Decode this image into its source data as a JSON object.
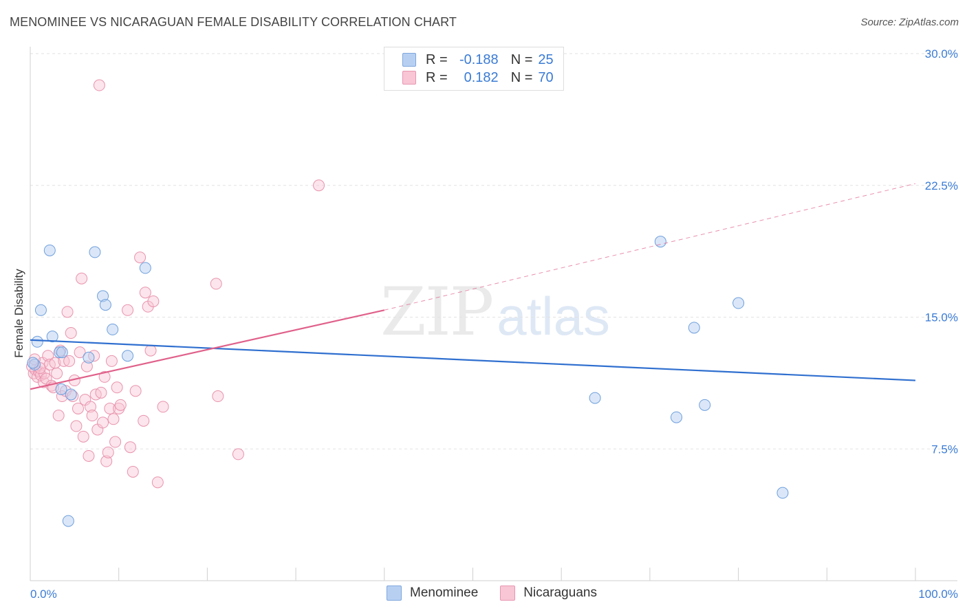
{
  "header": {
    "title": "MENOMINEE VS NICARAGUAN FEMALE DISABILITY CORRELATION CHART",
    "source": "Source: ZipAtlas.com"
  },
  "legend": {
    "rows": [
      {
        "r_label": "R =",
        "r_value": "-0.188",
        "n_label": "N =",
        "n_value": "25"
      },
      {
        "r_label": "R =",
        "r_value": "0.182",
        "n_label": "N =",
        "n_value": "70"
      }
    ]
  },
  "bottom_legend": [
    "Menominee",
    "Nicaraguans"
  ],
  "watermark": {
    "zip": "ZIP",
    "atlas": "atlas"
  },
  "colors": {
    "blue_fill": "#b7d0f2",
    "blue_stroke": "#6e9fdc",
    "blue_line": "#2f6fcf",
    "pink_fill": "#f8c6d5",
    "pink_stroke": "#e893ad",
    "pink_line": "#e0608a",
    "tick_label": "#3a7bd5",
    "grid": "#e2e2e2"
  },
  "chart_data": {
    "type": "scatter",
    "title": "MENOMINEE VS NICARAGUAN FEMALE DISABILITY CORRELATION CHART",
    "xlabel": "",
    "ylabel": "Female Disability",
    "xlim": [
      0,
      100
    ],
    "ylim": [
      0,
      30
    ],
    "x_tick_labels": [
      "0.0%",
      "100.0%"
    ],
    "y_ticks": [
      7.5,
      15.0,
      22.5,
      30.0
    ],
    "y_tick_labels": [
      "7.5%",
      "15.0%",
      "22.5%",
      "30.0%"
    ],
    "series": [
      {
        "name": "Menominee",
        "r": -0.188,
        "n": 25,
        "trend": {
          "x": [
            0,
            100
          ],
          "y": [
            13.7,
            11.4
          ],
          "dashed_beyond": null
        },
        "points": [
          [
            0.5,
            12.3
          ],
          [
            0.8,
            13.6
          ],
          [
            1.2,
            15.4
          ],
          [
            2.2,
            18.8
          ],
          [
            2.5,
            13.9
          ],
          [
            3.3,
            13.0
          ],
          [
            3.5,
            10.9
          ],
          [
            3.6,
            13.0
          ],
          [
            4.3,
            3.4
          ],
          [
            4.6,
            10.6
          ],
          [
            6.6,
            12.7
          ],
          [
            7.3,
            18.7
          ],
          [
            8.2,
            16.2
          ],
          [
            8.5,
            15.7
          ],
          [
            9.3,
            14.3
          ],
          [
            11.0,
            12.8
          ],
          [
            13.0,
            17.8
          ],
          [
            63.8,
            10.4
          ],
          [
            71.2,
            19.3
          ],
          [
            73.0,
            9.3
          ],
          [
            75.0,
            14.4
          ],
          [
            76.2,
            10.0
          ],
          [
            80.0,
            15.8
          ],
          [
            85.0,
            5.0
          ],
          [
            0.3,
            12.4
          ]
        ]
      },
      {
        "name": "Nicaraguans",
        "r": 0.182,
        "n": 70,
        "trend": {
          "x": [
            0,
            40
          ],
          "y": [
            10.9,
            15.4
          ],
          "dashed_to": {
            "x": 100,
            "y": 22.6
          }
        },
        "points": [
          [
            0.4,
            11.8
          ],
          [
            0.6,
            12.0
          ],
          [
            0.8,
            11.6
          ],
          [
            1.0,
            11.9
          ],
          [
            1.2,
            11.7
          ],
          [
            1.4,
            12.4
          ],
          [
            1.5,
            11.3
          ],
          [
            1.6,
            11.8
          ],
          [
            1.8,
            11.5
          ],
          [
            2.0,
            12.8
          ],
          [
            2.2,
            12.3
          ],
          [
            2.4,
            11.1
          ],
          [
            2.6,
            11.0
          ],
          [
            2.8,
            12.4
          ],
          [
            3.0,
            11.8
          ],
          [
            3.2,
            9.4
          ],
          [
            3.4,
            13.1
          ],
          [
            3.6,
            10.5
          ],
          [
            3.8,
            12.5
          ],
          [
            4.0,
            10.8
          ],
          [
            4.2,
            15.3
          ],
          [
            4.4,
            12.5
          ],
          [
            4.6,
            14.1
          ],
          [
            4.8,
            10.5
          ],
          [
            5.0,
            11.4
          ],
          [
            5.2,
            8.8
          ],
          [
            5.4,
            9.8
          ],
          [
            5.6,
            13.0
          ],
          [
            5.8,
            17.2
          ],
          [
            6.0,
            8.2
          ],
          [
            6.2,
            10.3
          ],
          [
            6.4,
            12.2
          ],
          [
            6.6,
            7.1
          ],
          [
            6.8,
            9.9
          ],
          [
            7.0,
            9.4
          ],
          [
            7.2,
            12.8
          ],
          [
            7.4,
            10.6
          ],
          [
            7.6,
            8.6
          ],
          [
            7.8,
            28.2
          ],
          [
            8.0,
            10.7
          ],
          [
            8.2,
            9.0
          ],
          [
            8.4,
            11.6
          ],
          [
            8.6,
            6.8
          ],
          [
            8.8,
            7.3
          ],
          [
            9.0,
            9.8
          ],
          [
            9.2,
            12.5
          ],
          [
            9.4,
            9.2
          ],
          [
            9.6,
            7.9
          ],
          [
            9.8,
            11.0
          ],
          [
            10.0,
            9.8
          ],
          [
            10.2,
            10.0
          ],
          [
            11.0,
            15.4
          ],
          [
            11.3,
            7.6
          ],
          [
            11.6,
            6.2
          ],
          [
            11.9,
            10.8
          ],
          [
            12.4,
            18.4
          ],
          [
            12.8,
            9.1
          ],
          [
            13.0,
            16.4
          ],
          [
            13.3,
            15.6
          ],
          [
            13.6,
            13.1
          ],
          [
            13.9,
            15.9
          ],
          [
            14.4,
            5.6
          ],
          [
            15.0,
            9.9
          ],
          [
            21.0,
            16.9
          ],
          [
            21.2,
            10.5
          ],
          [
            23.5,
            7.2
          ],
          [
            32.6,
            22.5
          ],
          [
            0.2,
            12.2
          ],
          [
            0.5,
            12.6
          ],
          [
            1.1,
            12.1
          ]
        ]
      }
    ]
  }
}
